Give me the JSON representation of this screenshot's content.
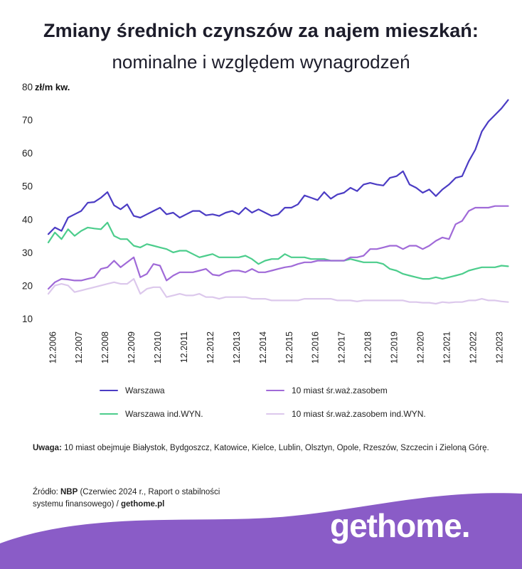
{
  "header": {
    "title": "Zmiany średnich czynszów za najem mieszkań:",
    "subtitle": "nominalne i względem wynagrodzeń"
  },
  "colors": {
    "warszawa": "#4b3cc4",
    "miast10": "#a06ad8",
    "warszawa_wyn": "#4ccd8c",
    "miast10_wyn": "#dcc8ec",
    "footer_bg": "#8a5cc7"
  },
  "chart_data": {
    "type": "line",
    "title": "Zmiany średnich czynszów za najem mieszkań: nominalne i względem wynagrodzeń",
    "ylabel": "zł/m kw.",
    "ylim": [
      10,
      80
    ],
    "yticks": [
      "10",
      "20",
      "30",
      "40",
      "50",
      "60",
      "70",
      "80"
    ],
    "x_tick_labels": [
      "12.2006",
      "12.2007",
      "12.2008",
      "12.2009",
      "12.2010",
      "12.2011",
      "12.2012",
      "12.2013",
      "12.2014",
      "12.2015",
      "12.2016",
      "12.2017",
      "12.2018",
      "12.2019",
      "12.2020",
      "12.2021",
      "12.2022",
      "12.2023"
    ],
    "x_start": 2006.75,
    "x_end": 2023.75,
    "x_step": 0.25,
    "legend_position": "bottom",
    "series": [
      {
        "name": "Warszawa",
        "color_key": "warszawa",
        "values": [
          35.5,
          37.5,
          36.5,
          40.5,
          41.5,
          42.5,
          45,
          45.2,
          46.5,
          48.2,
          44.2,
          43,
          44.5,
          41,
          40.5,
          41.5,
          42.5,
          43.5,
          41.5,
          42,
          40.5,
          41.5,
          42.5,
          42.5,
          41.2,
          41.5,
          41,
          42,
          42.5,
          41.5,
          43.5,
          42,
          43,
          42,
          41,
          41.5,
          43.5,
          43.5,
          44.5,
          47.2,
          46.5,
          45.8,
          48.2,
          46.2,
          47.5,
          48,
          49.5,
          48.5,
          50.5,
          51,
          50.5,
          50.2,
          52.5,
          53,
          54.5,
          50.5,
          49.5,
          48,
          49,
          47,
          49,
          50.5,
          52.5,
          53,
          57.5,
          61,
          66.5,
          69.5,
          71.5,
          73.5,
          76
        ]
      },
      {
        "name": "10 miast śr.waż.zasobem",
        "color_key": "miast10",
        "values": [
          19,
          21,
          22,
          21.8,
          21.5,
          21.5,
          22,
          22.5,
          25,
          25.5,
          27.5,
          25.5,
          27,
          28.5,
          22.5,
          23.5,
          26.5,
          26,
          21.5,
          23,
          24,
          24,
          24,
          24.5,
          25,
          23.3,
          23,
          24,
          24.5,
          24.5,
          24,
          25,
          24,
          24,
          24.5,
          25,
          25.5,
          25.8,
          26.5,
          27,
          27,
          27.5,
          27.5,
          27.5,
          27.5,
          27.5,
          28.5,
          28.5,
          29,
          31,
          31,
          31.5,
          32,
          32,
          31,
          32,
          32,
          31,
          32,
          33.5,
          34.5,
          34,
          38.5,
          39.5,
          42.5,
          43.5,
          43.5,
          43.5,
          44,
          44,
          44
        ]
      },
      {
        "name": "Warszawa ind.WYN.",
        "color_key": "warszawa_wyn",
        "values": [
          33,
          36,
          34,
          37,
          35,
          36.5,
          37.5,
          37.2,
          37,
          39,
          35,
          34,
          34,
          32,
          31.5,
          32.5,
          32,
          31.5,
          31,
          30,
          30.5,
          30.5,
          29.5,
          28.5,
          29,
          29.5,
          28.5,
          28.5,
          28.5,
          28.5,
          29,
          28,
          26.5,
          27.5,
          28,
          28,
          29.5,
          28.5,
          28.5,
          28.5,
          28,
          28,
          28,
          27.5,
          27.5,
          27.5,
          28,
          27.5,
          27,
          27,
          27,
          26.5,
          25,
          24.5,
          23.5,
          23,
          22.5,
          22,
          22,
          22.5,
          22,
          22.5,
          23,
          23.5,
          24.5,
          25,
          25.5,
          25.5,
          25.5,
          26,
          25.8
        ]
      },
      {
        "name": "10 miast śr.waż.zasobem ind.WYN.",
        "color_key": "miast10_wyn",
        "values": [
          17.5,
          20,
          20.5,
          20,
          18,
          18.5,
          19,
          19.5,
          20,
          20.5,
          21,
          20.5,
          20.5,
          22,
          17.5,
          19,
          19.5,
          19.5,
          16.5,
          17,
          17.5,
          17,
          17,
          17.5,
          16.5,
          16.5,
          16,
          16.5,
          16.5,
          16.5,
          16.5,
          16,
          16,
          16,
          15.5,
          15.5,
          15.5,
          15.5,
          15.5,
          16,
          16,
          16,
          16,
          16,
          15.5,
          15.5,
          15.5,
          15.2,
          15.5,
          15.5,
          15.5,
          15.5,
          15.5,
          15.5,
          15.5,
          15,
          15,
          14.8,
          14.8,
          14.5,
          15,
          14.8,
          15,
          15,
          15.5,
          15.5,
          16,
          15.5,
          15.5,
          15.2,
          15
        ]
      }
    ]
  },
  "note": {
    "label": "Uwaga:",
    "text": " 10 miast obejmuje Białystok, Bydgoszcz, Katowice, Kielce, Lublin, Olsztyn, Opole, Rzeszów, Szczecin i Zieloną Górę."
  },
  "source": {
    "label": "Źródło:",
    "nbp": "NBP",
    "line1_rest": " (Czerwiec 2024 r., Raport o stabilności",
    "line2": "systemu finansowego) / ",
    "site": "gethome.pl"
  },
  "logo": {
    "text": "gethome",
    "dot": "."
  }
}
